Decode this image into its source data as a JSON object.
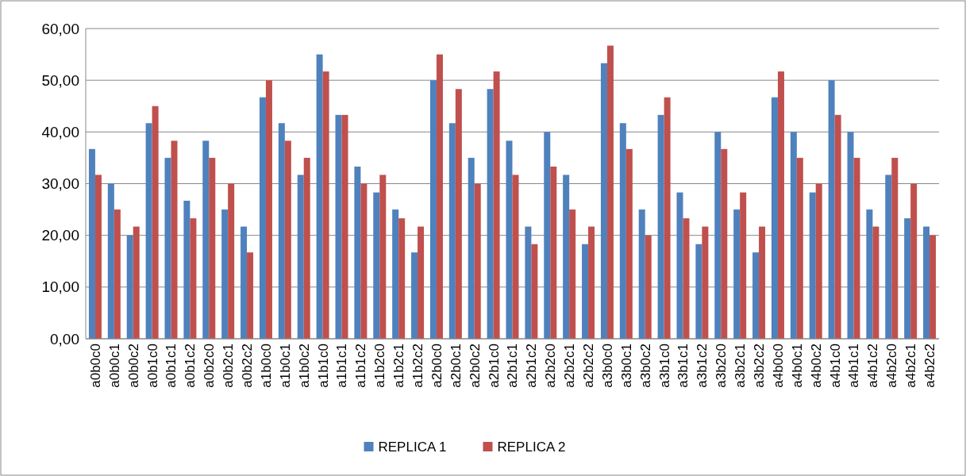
{
  "chart_data": {
    "type": "bar",
    "categories": [
      "a0b0c0",
      "a0b0c1",
      "a0b0c2",
      "a0b1c0",
      "a0b1c1",
      "a0b1c2",
      "a0b2c0",
      "a0b2c1",
      "a0b2c2",
      "a1b0c0",
      "a1b0c1",
      "a1b0c2",
      "a1b1c0",
      "a1b1c1",
      "a1b1c2",
      "a1b2c0",
      "a1b2c1",
      "a1b2c2",
      "a2b0c0",
      "a2b0c1",
      "a2b0c2",
      "a2b1c0",
      "a2b1c1",
      "a2b1c2",
      "a2b2c0",
      "a2b2c1",
      "a2b2c2",
      "a3b0c0",
      "a3b0c1",
      "a3b0c2",
      "a3b1c0",
      "a3b1c1",
      "a3b1c2",
      "a3b2c0",
      "a3b2c1",
      "a3b2c2",
      "a4b0c0",
      "a4b0c1",
      "a4b0c2",
      "a4b1c0",
      "a4b1c1",
      "a4b1c2",
      "a4b2c0",
      "a4b2c1",
      "a4b2c2"
    ],
    "series": [
      {
        "name": "REPLICA 1",
        "color": "#4f81bd",
        "values": [
          36.7,
          30,
          20,
          41.7,
          35,
          26.7,
          38.3,
          25,
          21.7,
          46.7,
          41.7,
          31.7,
          55,
          43.3,
          33.3,
          28.3,
          25,
          16.7,
          50,
          41.7,
          35,
          48.3,
          38.3,
          21.7,
          40,
          31.7,
          18.3,
          53.3,
          41.7,
          25,
          43.3,
          28.3,
          18.3,
          40,
          25,
          16.7,
          46.7,
          40,
          28.3,
          50,
          40,
          25,
          31.7,
          23.3,
          21.7
        ]
      },
      {
        "name": "REPLICA 2",
        "color": "#c0504d",
        "values": [
          31.7,
          25,
          21.7,
          45,
          38.3,
          23.3,
          35,
          30,
          16.7,
          50,
          38.3,
          35,
          51.7,
          43.3,
          30,
          31.7,
          23.3,
          21.7,
          55,
          48.3,
          30,
          51.7,
          31.7,
          18.3,
          33.3,
          25,
          21.7,
          56.7,
          36.7,
          20,
          46.7,
          23.3,
          21.7,
          36.7,
          28.3,
          21.7,
          51.7,
          35,
          30,
          43.3,
          35,
          21.7,
          35,
          30,
          20
        ]
      }
    ],
    "ylim": [
      0,
      60
    ],
    "yticks": [
      {
        "value": 0,
        "label": "0,00"
      },
      {
        "value": 10,
        "label": "10,00"
      },
      {
        "value": 20,
        "label": "20,00"
      },
      {
        "value": 30,
        "label": "30,00"
      },
      {
        "value": 40,
        "label": "40,00"
      },
      {
        "value": 50,
        "label": "50,00"
      },
      {
        "value": 60,
        "label": "60,00"
      }
    ],
    "grid": "y",
    "legend": "bottom"
  }
}
